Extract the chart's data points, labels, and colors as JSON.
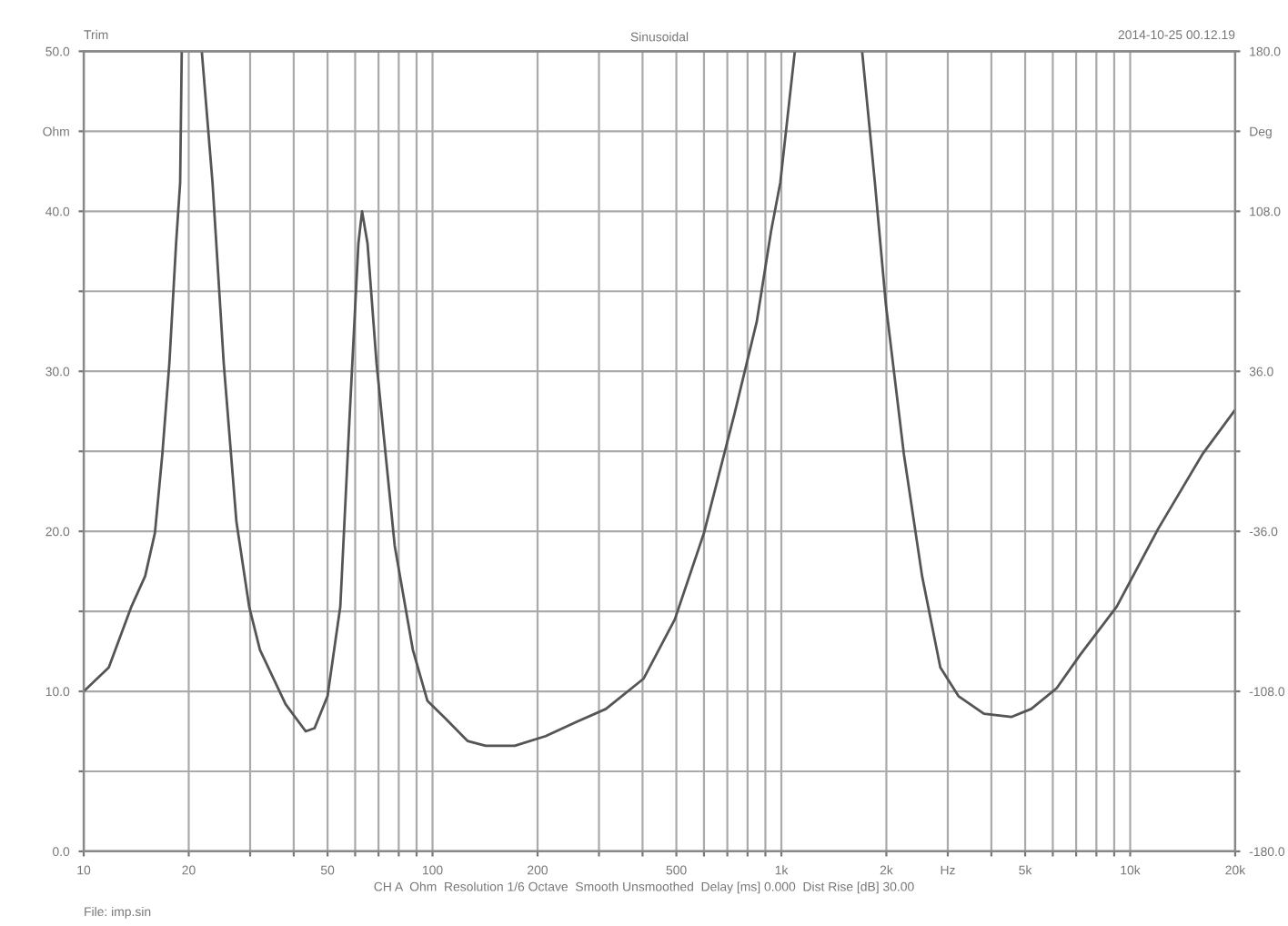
{
  "chart_data": {
    "type": "line",
    "title": "Sinusoidal",
    "x": [
      10,
      11.8,
      13.7,
      15.0,
      16.0,
      16.8,
      17.6,
      18.4,
      18.9,
      19.1,
      20.5,
      21.8,
      23.4,
      25.2,
      27.4,
      29.8,
      32.0,
      37.9,
      43.3,
      45.9,
      50.0,
      54.4,
      57.7,
      61.3,
      62.8,
      65.1,
      69.1,
      77.9,
      87.8,
      96.7,
      109,
      126,
      142,
      172,
      211,
      259,
      314,
      403,
      495,
      600,
      735,
      850,
      935,
      993,
      1093,
      1400,
      1704,
      1854,
      1993,
      2246,
      2532,
      2856,
      3220,
      3808,
      4560,
      5203,
      6157,
      7195,
      9150,
      12060,
      16090,
      20000
    ],
    "series": [
      {
        "color": "#555555",
        "values": [
          10.0,
          11.5,
          15.3,
          17.2,
          19.9,
          24.8,
          30.5,
          38.0,
          41.8,
          50.0,
          null,
          50.0,
          41.8,
          30.5,
          20.6,
          15.3,
          12.6,
          9.2,
          7.5,
          7.7,
          9.7,
          15.3,
          26.7,
          38.0,
          40.0,
          38.0,
          30.5,
          19.1,
          12.6,
          9.4,
          8.3,
          6.9,
          6.6,
          6.6,
          7.2,
          8.1,
          8.9,
          10.8,
          14.5,
          19.9,
          27.4,
          33.1,
          38.8,
          41.8,
          50.0,
          null,
          50.0,
          41.8,
          34.2,
          24.8,
          17.2,
          11.5,
          9.7,
          8.6,
          8.4,
          8.9,
          10.2,
          12.3,
          15.3,
          20.2,
          24.8,
          27.6
        ]
      }
    ],
    "log": "x",
    "xlim": [
      10,
      20000
    ],
    "xticks": [
      10,
      {
        "value": 20,
        "label": "20"
      },
      {
        "value": 30,
        "label": null
      },
      {
        "value": 40,
        "label": null
      },
      50,
      {
        "value": 60,
        "label": null
      },
      {
        "value": 70,
        "label": null
      },
      {
        "value": 80,
        "label": null
      },
      {
        "value": 90,
        "label": null
      },
      100,
      200,
      {
        "value": 300,
        "label": null
      },
      {
        "value": 400,
        "label": null
      },
      500,
      {
        "value": 600,
        "label": null
      },
      {
        "value": 700,
        "label": null
      },
      {
        "value": 800,
        "label": null
      },
      {
        "value": 900,
        "label": null
      },
      {
        "value": 1000,
        "label": "1k"
      },
      {
        "value": 2000,
        "label": "2k"
      },
      {
        "value": 3000,
        "label": "Hz"
      },
      {
        "value": 4000,
        "label": null
      },
      {
        "value": 5000,
        "label": "5k"
      },
      {
        "value": 6000,
        "label": null
      },
      {
        "value": 7000,
        "label": null
      },
      {
        "value": 8000,
        "label": null
      },
      {
        "value": 9000,
        "label": null
      },
      {
        "value": 10000,
        "label": "10k"
      },
      {
        "value": 20000,
        "label": "20k"
      }
    ],
    "ylim": [
      0,
      50
    ],
    "yticks": [
      {
        "value": 0,
        "label": "0.0"
      },
      {
        "value": 5,
        "label": null
      },
      {
        "value": 10,
        "label": "10.0"
      },
      {
        "value": 15,
        "label": null
      },
      {
        "value": 20,
        "label": "20.0"
      },
      {
        "value": 25,
        "label": null
      },
      {
        "value": 30,
        "label": "30.0"
      },
      {
        "value": 35,
        "label": null
      },
      {
        "value": 40,
        "label": "40.0"
      },
      {
        "value": 45,
        "label": "Ohm"
      },
      {
        "value": 50,
        "label": "50.0"
      }
    ],
    "y2lim": [
      -180,
      180
    ],
    "y2ticks": [
      {
        "value": -180,
        "label": "-180.0"
      },
      {
        "value": -144,
        "label": null
      },
      {
        "value": -108,
        "label": "-108.0"
      },
      {
        "value": -72,
        "label": null
      },
      {
        "value": -36,
        "label": "-36.0"
      },
      {
        "value": 0,
        "label": null
      },
      {
        "value": 36,
        "label": "36.0"
      },
      {
        "value": 72,
        "label": null
      },
      {
        "value": 108,
        "label": "108.0"
      },
      {
        "value": 144,
        "label": "Deg"
      },
      {
        "value": 180,
        "label": "180.0"
      }
    ],
    "grid": true,
    "marker": "none",
    "line_style": "solid",
    "annotations": [
      "Trim",
      "2014-10-25 00.12.19",
      "CH A  Ohm  Resolution 1/6 Octave  Smooth Unsmoothed  Delay [ms] 0.000  Dist Rise [dB] 30.00",
      "File: imp.sin"
    ]
  }
}
